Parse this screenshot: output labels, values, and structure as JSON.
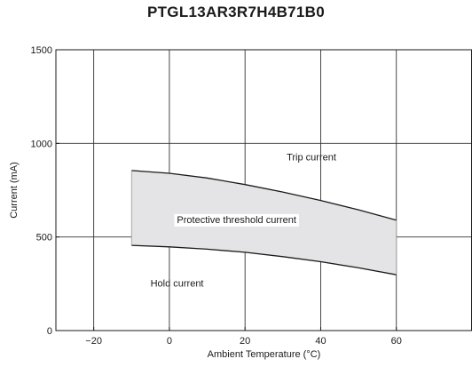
{
  "chart_data": {
    "type": "area",
    "title": "PTGL13AR3R7H4B71B0",
    "xlabel": "Ambient Temperature (°C)",
    "ylabel": "Current (mA)",
    "xlim": [
      -30,
      80
    ],
    "ylim": [
      0,
      1500
    ],
    "x_ticks": [
      -20,
      0,
      20,
      40,
      60
    ],
    "x_tick_labels": [
      "−20",
      "0",
      "20",
      "40",
      "60"
    ],
    "y_ticks": [
      0,
      500,
      1000,
      1500
    ],
    "y_tick_labels": [
      "0",
      "500",
      "1000",
      "1500"
    ],
    "grid": true,
    "series": [
      {
        "name": "Trip current",
        "x": [
          -10,
          0,
          10,
          20,
          30,
          40,
          50,
          60
        ],
        "values": [
          855,
          840,
          815,
          780,
          740,
          695,
          645,
          590
        ]
      },
      {
        "name": "Hold current",
        "x": [
          -10,
          0,
          10,
          20,
          30,
          40,
          50,
          60
        ],
        "values": [
          455,
          447,
          435,
          418,
          395,
          368,
          335,
          298
        ]
      }
    ],
    "annotations": {
      "trip": "Trip current",
      "band": "Protective threshold current",
      "hold": "Hold current"
    },
    "colors": {
      "band": "#e4e4e6",
      "line": "#1a1a1a",
      "grid": "#333333"
    }
  }
}
